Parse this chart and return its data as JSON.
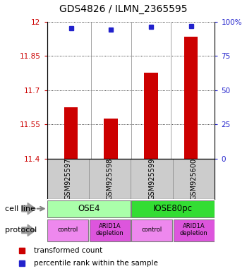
{
  "title": "GDS4826 / ILMN_2365595",
  "samples": [
    "GSM925597",
    "GSM925598",
    "GSM925599",
    "GSM925600"
  ],
  "bar_values": [
    11.625,
    11.575,
    11.775,
    11.935
  ],
  "dot_values": [
    95,
    94,
    96,
    97
  ],
  "ylim_left": [
    11.4,
    12.0
  ],
  "ylim_right": [
    0,
    100
  ],
  "yticks_left": [
    11.4,
    11.55,
    11.7,
    11.85,
    12.0
  ],
  "yticks_right": [
    0,
    25,
    50,
    75,
    100
  ],
  "ytick_labels_left": [
    "11.4",
    "11.55",
    "11.7",
    "11.85",
    "12"
  ],
  "ytick_labels_right": [
    "0",
    "25",
    "50",
    "75",
    "100%"
  ],
  "bar_color": "#cc0000",
  "dot_color": "#2222cc",
  "cell_line_labels": [
    "OSE4",
    "IOSE80pc"
  ],
  "cell_line_colors": [
    "#aaffaa",
    "#33dd33"
  ],
  "protocol_labels": [
    "control",
    "ARID1A\ndepletion",
    "control",
    "ARID1A\ndepletion"
  ],
  "protocol_colors": [
    "#ee88ee",
    "#dd55dd",
    "#ee88ee",
    "#dd55dd"
  ],
  "legend_bar_label": "transformed count",
  "legend_dot_label": "percentile rank within the sample",
  "cell_line_row_label": "cell line",
  "protocol_row_label": "protocol",
  "background_color": "#ffffff",
  "sample_box_color": "#cccccc",
  "bar_width": 0.35
}
